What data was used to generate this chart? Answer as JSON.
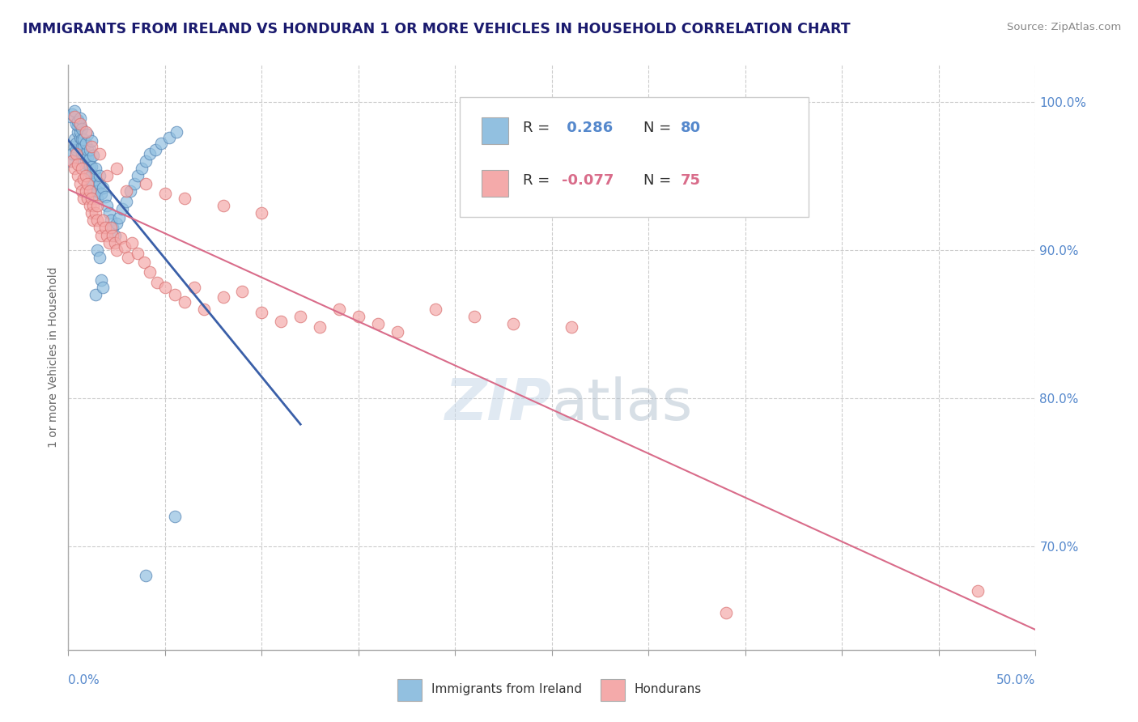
{
  "title": "IMMIGRANTS FROM IRELAND VS HONDURAN 1 OR MORE VEHICLES IN HOUSEHOLD CORRELATION CHART",
  "source": "Source: ZipAtlas.com",
  "ylabel": "1 or more Vehicles in Household",
  "xmin": 0.0,
  "xmax": 0.5,
  "ymin": 0.63,
  "ymax": 1.025,
  "ireland_r": 0.286,
  "ireland_n": 80,
  "honduran_r": -0.077,
  "honduran_n": 75,
  "ireland_color": "#92c0e0",
  "honduran_color": "#f4aaaa",
  "ireland_edge_color": "#5585b5",
  "honduran_edge_color": "#d97070",
  "ireland_line_color": "#3a5fa8",
  "honduran_line_color": "#d96c8a",
  "legend_ireland_label": "Immigrants from Ireland",
  "legend_honduran_label": "Hondurans",
  "ireland_scatter_x": [
    0.001,
    0.002,
    0.003,
    0.003,
    0.004,
    0.004,
    0.005,
    0.005,
    0.005,
    0.006,
    0.006,
    0.006,
    0.007,
    0.007,
    0.007,
    0.008,
    0.008,
    0.008,
    0.009,
    0.009,
    0.009,
    0.01,
    0.01,
    0.01,
    0.011,
    0.011,
    0.011,
    0.012,
    0.012,
    0.012,
    0.013,
    0.013,
    0.014,
    0.014,
    0.015,
    0.015,
    0.016,
    0.016,
    0.017,
    0.018,
    0.019,
    0.02,
    0.021,
    0.022,
    0.023,
    0.024,
    0.025,
    0.026,
    0.028,
    0.03,
    0.032,
    0.034,
    0.036,
    0.038,
    0.04,
    0.042,
    0.045,
    0.048,
    0.052,
    0.056,
    0.001,
    0.002,
    0.003,
    0.004,
    0.005,
    0.006,
    0.007,
    0.008,
    0.009,
    0.01,
    0.011,
    0.012,
    0.013,
    0.014,
    0.015,
    0.016,
    0.017,
    0.018,
    0.04,
    0.055
  ],
  "ireland_scatter_y": [
    0.96,
    0.965,
    0.97,
    0.975,
    0.968,
    0.972,
    0.98,
    0.984,
    0.988,
    0.976,
    0.98,
    0.984,
    0.965,
    0.97,
    0.975,
    0.96,
    0.965,
    0.97,
    0.955,
    0.96,
    0.965,
    0.958,
    0.963,
    0.968,
    0.952,
    0.957,
    0.962,
    0.946,
    0.951,
    0.956,
    0.94,
    0.945,
    0.95,
    0.955,
    0.935,
    0.94,
    0.945,
    0.95,
    0.938,
    0.942,
    0.936,
    0.93,
    0.925,
    0.92,
    0.915,
    0.91,
    0.918,
    0.922,
    0.928,
    0.933,
    0.94,
    0.945,
    0.95,
    0.955,
    0.96,
    0.965,
    0.968,
    0.972,
    0.976,
    0.98,
    0.99,
    0.992,
    0.994,
    0.985,
    0.987,
    0.989,
    0.982,
    0.975,
    0.972,
    0.978,
    0.968,
    0.974,
    0.964,
    0.87,
    0.9,
    0.895,
    0.88,
    0.875,
    0.68,
    0.72
  ],
  "honduran_scatter_x": [
    0.002,
    0.003,
    0.004,
    0.005,
    0.005,
    0.006,
    0.007,
    0.007,
    0.008,
    0.008,
    0.009,
    0.009,
    0.01,
    0.01,
    0.011,
    0.011,
    0.012,
    0.012,
    0.013,
    0.013,
    0.014,
    0.015,
    0.015,
    0.016,
    0.017,
    0.018,
    0.019,
    0.02,
    0.021,
    0.022,
    0.023,
    0.024,
    0.025,
    0.027,
    0.029,
    0.031,
    0.033,
    0.036,
    0.039,
    0.042,
    0.046,
    0.05,
    0.055,
    0.06,
    0.065,
    0.07,
    0.08,
    0.09,
    0.1,
    0.11,
    0.12,
    0.13,
    0.14,
    0.15,
    0.16,
    0.17,
    0.19,
    0.21,
    0.23,
    0.26,
    0.003,
    0.006,
    0.009,
    0.012,
    0.016,
    0.02,
    0.025,
    0.03,
    0.04,
    0.05,
    0.06,
    0.08,
    0.1,
    0.47,
    0.34
  ],
  "honduran_scatter_y": [
    0.96,
    0.955,
    0.965,
    0.95,
    0.958,
    0.945,
    0.955,
    0.94,
    0.948,
    0.935,
    0.95,
    0.94,
    0.945,
    0.935,
    0.94,
    0.93,
    0.935,
    0.925,
    0.93,
    0.92,
    0.925,
    0.93,
    0.92,
    0.915,
    0.91,
    0.92,
    0.915,
    0.91,
    0.905,
    0.915,
    0.91,
    0.905,
    0.9,
    0.908,
    0.902,
    0.895,
    0.905,
    0.898,
    0.892,
    0.885,
    0.878,
    0.875,
    0.87,
    0.865,
    0.875,
    0.86,
    0.868,
    0.872,
    0.858,
    0.852,
    0.855,
    0.848,
    0.86,
    0.855,
    0.85,
    0.845,
    0.86,
    0.855,
    0.85,
    0.848,
    0.99,
    0.985,
    0.98,
    0.97,
    0.965,
    0.95,
    0.955,
    0.94,
    0.945,
    0.938,
    0.935,
    0.93,
    0.925,
    0.67,
    0.655
  ]
}
